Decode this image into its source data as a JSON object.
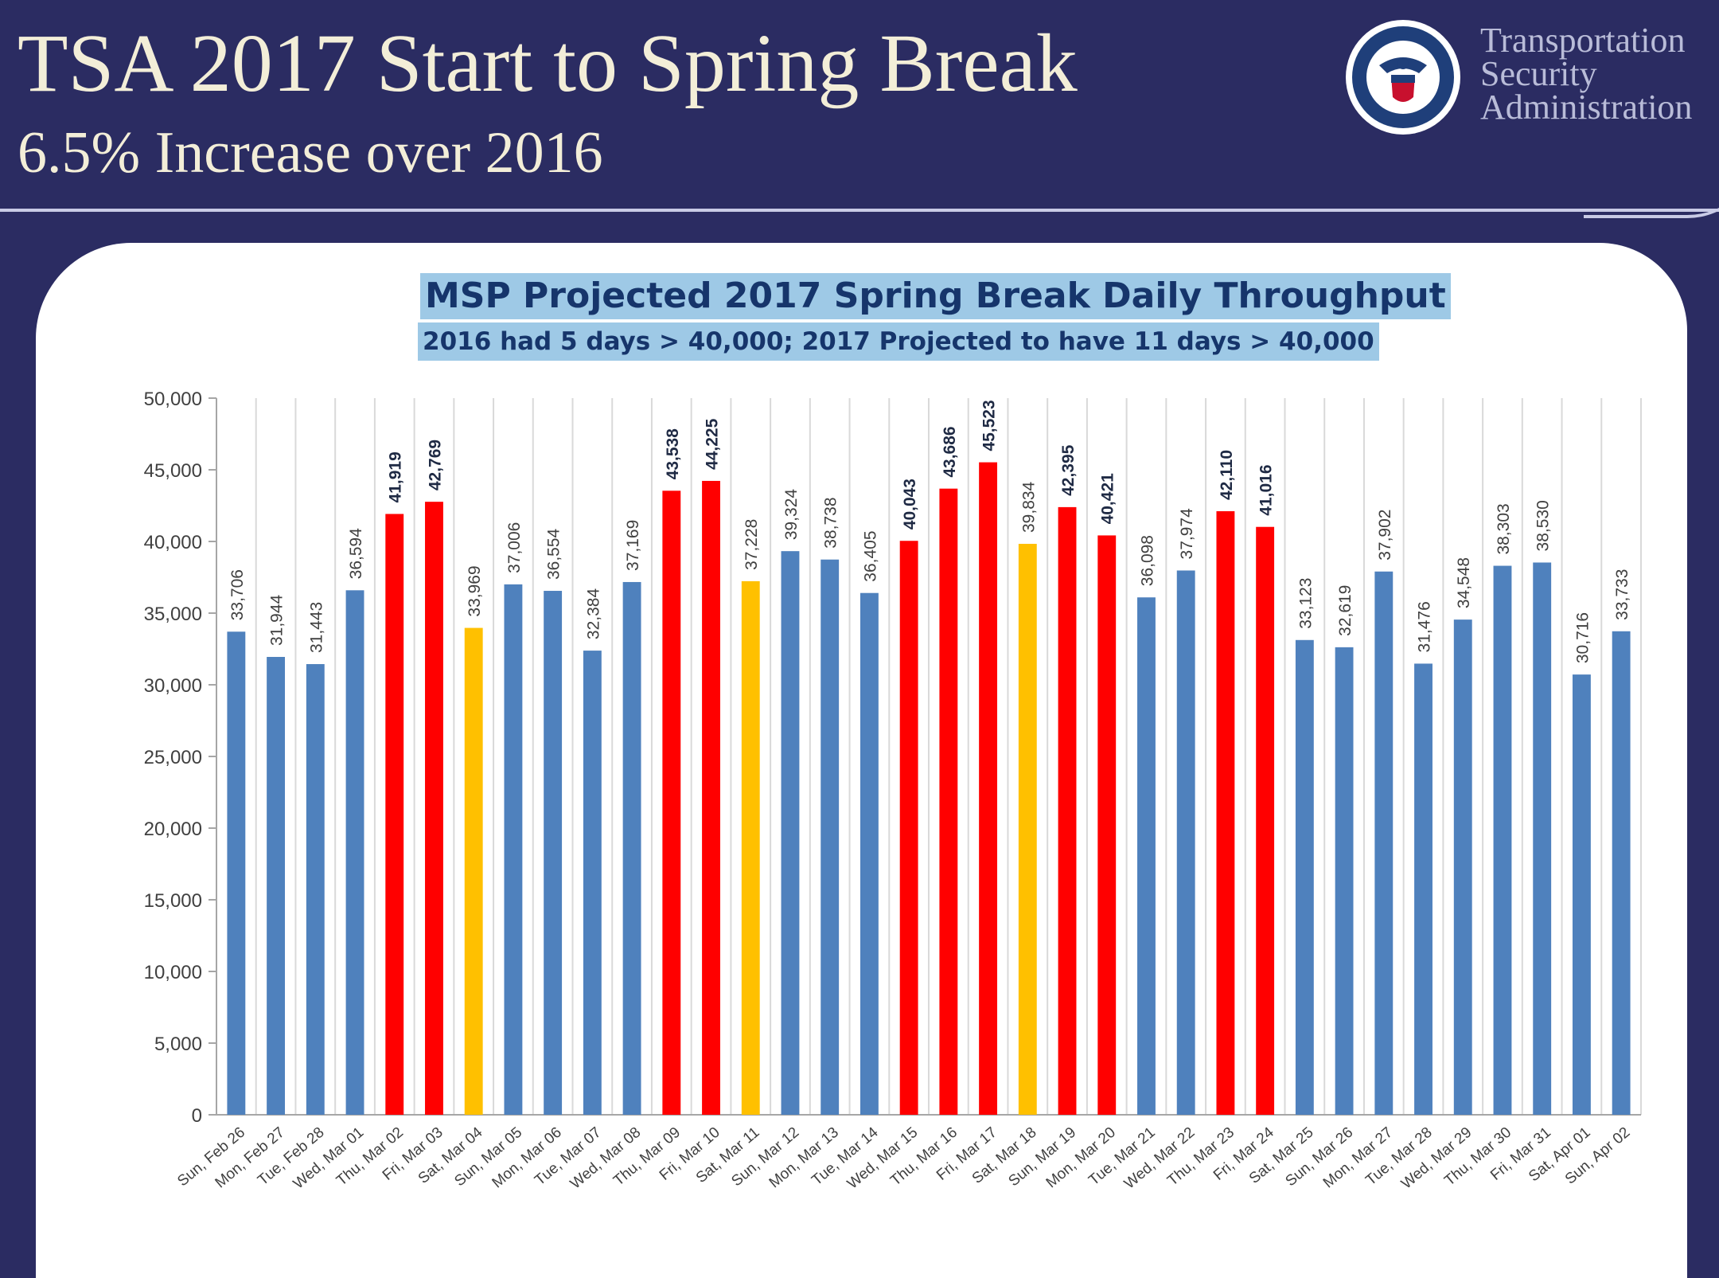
{
  "header": {
    "title": "TSA 2017 Start to Spring Break",
    "subtitle": "6.5% Increase over 2016",
    "agency_lines": [
      "Transportation",
      "Security",
      "Administration"
    ]
  },
  "logo": {
    "icon": "dhs-seal-icon"
  },
  "colors": {
    "background": "#2b2c62",
    "normal": "#4f81bd",
    "over_40000": "#ff0000",
    "weekend_high": "#ffc000"
  },
  "chart_data": {
    "type": "bar",
    "title": "MSP Projected 2017 Spring Break Daily Throughput",
    "subtitle": "2016 had 5 days > 40,000; 2017 Projected to have 11 days > 40,000",
    "xlabel": "",
    "ylabel": "",
    "ylim": [
      0,
      50000
    ],
    "yticks": [
      "0",
      "5,000",
      "10,000",
      "15,000",
      "20,000",
      "25,000",
      "30,000",
      "35,000",
      "40,000",
      "45,000",
      "50,000"
    ],
    "grid": "vertical",
    "legend": "none",
    "categories": [
      "Sun, Feb 26",
      "Mon, Feb 27",
      "Tue, Feb 28",
      "Wed, Mar 01",
      "Thu, Mar 02",
      "Fri, Mar 03",
      "Sat, Mar 04",
      "Sun, Mar 05",
      "Mon, Mar 06",
      "Tue, Mar 07",
      "Wed, Mar 08",
      "Thu, Mar 09",
      "Fri, Mar 10",
      "Sat, Mar 11",
      "Sun, Mar 12",
      "Mon, Mar 13",
      "Tue, Mar 14",
      "Wed, Mar 15",
      "Thu, Mar 16",
      "Fri, Mar 17",
      "Sat, Mar 18",
      "Sun, Mar 19",
      "Mon, Mar 20",
      "Tue, Mar 21",
      "Wed, Mar 22",
      "Thu, Mar 23",
      "Fri, Mar 24",
      "Sat, Mar 25",
      "Sun, Mar 26",
      "Mon, Mar 27",
      "Tue, Mar 28",
      "Wed, Mar 29",
      "Thu, Mar 30",
      "Fri, Mar 31",
      "Sat, Apr 01",
      "Sun, Apr 02"
    ],
    "values": [
      33706,
      31944,
      31443,
      36594,
      41919,
      42769,
      33969,
      37006,
      36554,
      32384,
      37169,
      43538,
      44225,
      37228,
      39324,
      38738,
      36405,
      40043,
      43686,
      45523,
      39834,
      42395,
      40421,
      36098,
      37974,
      42110,
      41016,
      33123,
      32619,
      37902,
      31476,
      34548,
      38303,
      38530,
      30716,
      33733
    ],
    "labels": [
      "33,706",
      "31,944",
      "31,443",
      "36,594",
      "41,919",
      "42,769",
      "33,969",
      "37,006",
      "36,554",
      "32,384",
      "37,169",
      "43,538",
      "44,225",
      "37,228",
      "39,324",
      "38,738",
      "36,405",
      "40,043",
      "43,686",
      "45,523",
      "39,834",
      "42,395",
      "40,421",
      "36,098",
      "37,974",
      "42,110",
      "41,016",
      "33,123",
      "32,619",
      "37,902",
      "31,476",
      "34,548",
      "38,303",
      "38,530",
      "30,716",
      "33,733"
    ],
    "bar_colors": [
      "#4f81bd",
      "#4f81bd",
      "#4f81bd",
      "#4f81bd",
      "#ff0000",
      "#ff0000",
      "#ffc000",
      "#4f81bd",
      "#4f81bd",
      "#4f81bd",
      "#4f81bd",
      "#ff0000",
      "#ff0000",
      "#ffc000",
      "#4f81bd",
      "#4f81bd",
      "#4f81bd",
      "#ff0000",
      "#ff0000",
      "#ff0000",
      "#ffc000",
      "#ff0000",
      "#ff0000",
      "#4f81bd",
      "#4f81bd",
      "#ff0000",
      "#ff0000",
      "#4f81bd",
      "#4f81bd",
      "#4f81bd",
      "#4f81bd",
      "#4f81bd",
      "#4f81bd",
      "#4f81bd",
      "#4f81bd",
      "#4f81bd"
    ]
  }
}
